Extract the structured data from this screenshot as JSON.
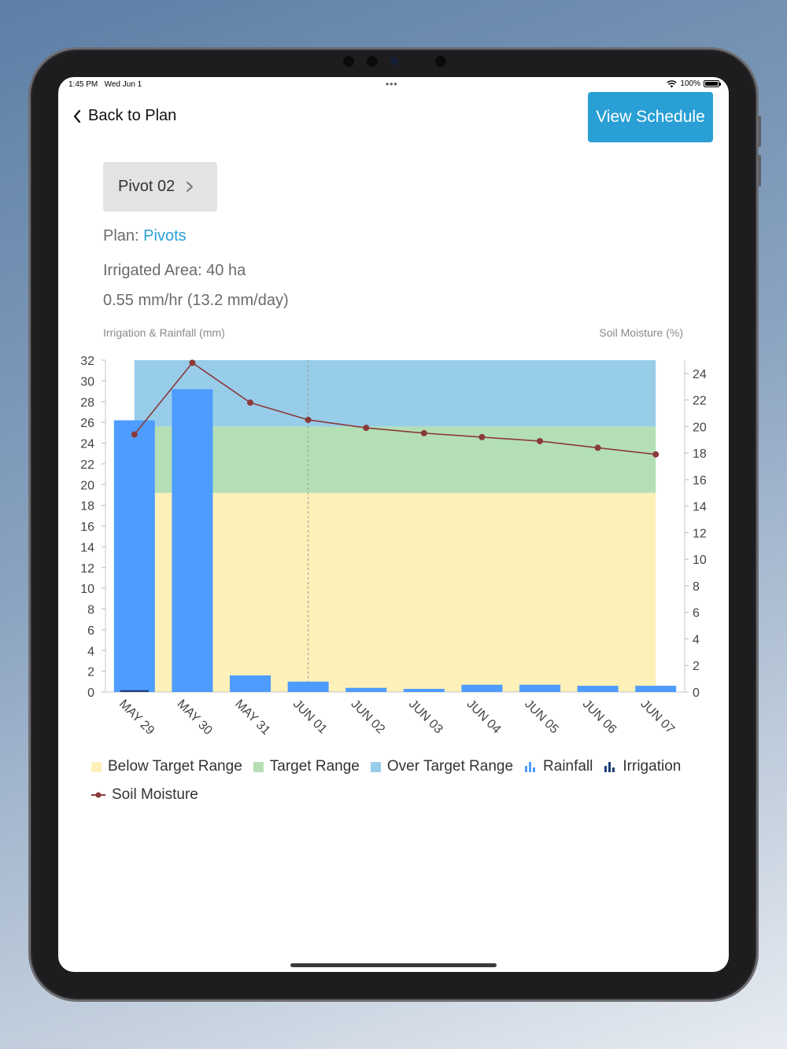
{
  "status_bar": {
    "time": "1:45 PM",
    "date": "Wed Jun 1",
    "battery": "100%"
  },
  "nav": {
    "back_label": "Back to Plan",
    "view_schedule_label": "View Schedule"
  },
  "pivot": {
    "label": "Pivot 02"
  },
  "plan": {
    "prefix": "Plan: ",
    "name": "Pivots"
  },
  "irrigated_area": "Irrigated Area: 40 ha",
  "rate": "0.55 mm/hr (13.2 mm/day)",
  "colors": {
    "accent": "#2a9fd6",
    "below_target": "#fdf0b8",
    "target": "#b4dfb6",
    "over_target": "#98cdea",
    "rainfall": "#4e9cff",
    "irrigation": "#1e3f7a",
    "soil_moisture": "#8a3a3a"
  },
  "chart_data": {
    "type": "bar",
    "left_axis_label": "Irrigation & Rainfall (mm)",
    "right_axis_label": "Soil Moisture (%)",
    "categories": [
      "MAY 29",
      "MAY 30",
      "MAY 31",
      "JUN 01",
      "JUN 02",
      "JUN 03",
      "JUN 04",
      "JUN 05",
      "JUN 06",
      "JUN 07"
    ],
    "left_ylim": [
      0,
      32
    ],
    "left_ticks": [
      0,
      2,
      4,
      6,
      8,
      10,
      12,
      14,
      16,
      18,
      20,
      22,
      24,
      26,
      28,
      30,
      32
    ],
    "right_ylim": [
      0,
      25
    ],
    "right_ticks": [
      0,
      2,
      4,
      6,
      8,
      10,
      12,
      14,
      16,
      18,
      20,
      22,
      24
    ],
    "series": [
      {
        "name": "Rainfall",
        "type": "bar",
        "axis": "left",
        "values": [
          26.2,
          29.2,
          1.6,
          1.0,
          0.4,
          0.3,
          0.7,
          0.7,
          0.6,
          0.6
        ]
      },
      {
        "name": "Irrigation",
        "type": "bar",
        "axis": "left",
        "values": [
          0.1,
          0,
          0,
          0,
          0,
          0,
          0,
          0,
          0,
          0
        ]
      },
      {
        "name": "Soil Moisture",
        "type": "line",
        "axis": "right",
        "values": [
          19.4,
          24.8,
          21.8,
          20.5,
          19.9,
          19.5,
          19.2,
          18.9,
          18.4,
          17.9
        ]
      }
    ],
    "ranges": [
      {
        "name": "Below Target Range",
        "from": 0,
        "to": 15,
        "axis": "right"
      },
      {
        "name": "Target Range",
        "from": 15,
        "to": 20,
        "axis": "right"
      },
      {
        "name": "Over Target Range",
        "from": 20,
        "to": 25,
        "axis": "right"
      }
    ],
    "today_marker": "JUN 01",
    "legend": [
      "Below Target Range",
      "Target Range",
      "Over Target Range",
      "Rainfall",
      "Irrigation",
      "Soil Moisture"
    ]
  }
}
